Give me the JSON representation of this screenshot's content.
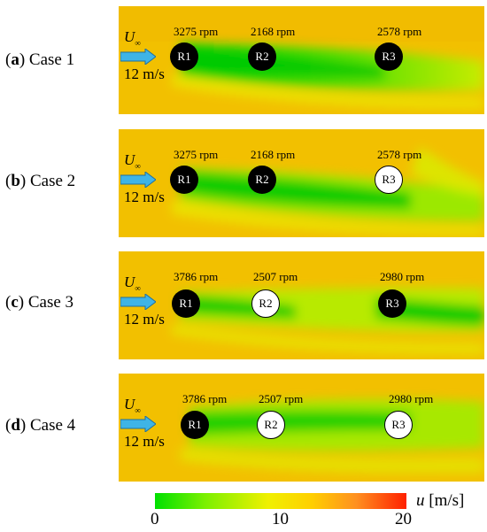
{
  "cases": [
    {
      "letter": "a",
      "name": "Case 1",
      "inflow_symbol": "U",
      "inflow_sub": "∞",
      "inflow_speed": "12 m/s",
      "rotors": [
        {
          "id": "R1",
          "rpm": "3275 rpm",
          "state": "active"
        },
        {
          "id": "R2",
          "rpm": "2168 rpm",
          "state": "active"
        },
        {
          "id": "R3",
          "rpm": "2578 rpm",
          "state": "active"
        }
      ]
    },
    {
      "letter": "b",
      "name": "Case 2",
      "inflow_symbol": "U",
      "inflow_sub": "∞",
      "inflow_speed": "12 m/s",
      "rotors": [
        {
          "id": "R1",
          "rpm": "3275 rpm",
          "state": "active"
        },
        {
          "id": "R2",
          "rpm": "2168 rpm",
          "state": "active"
        },
        {
          "id": "R3",
          "rpm": "2578 rpm",
          "state": "stopped"
        }
      ]
    },
    {
      "letter": "c",
      "name": "Case 3",
      "inflow_symbol": "U",
      "inflow_sub": "∞",
      "inflow_speed": "12 m/s",
      "rotors": [
        {
          "id": "R1",
          "rpm": "3786 rpm",
          "state": "active"
        },
        {
          "id": "R2",
          "rpm": "2507 rpm",
          "state": "stopped"
        },
        {
          "id": "R3",
          "rpm": "2980 rpm",
          "state": "active"
        }
      ]
    },
    {
      "letter": "d",
      "name": "Case 4",
      "inflow_symbol": "U",
      "inflow_sub": "∞",
      "inflow_speed": "12 m/s",
      "rotors": [
        {
          "id": "R1",
          "rpm": "3786 rpm",
          "state": "active"
        },
        {
          "id": "R2",
          "rpm": "2507 rpm",
          "state": "stopped"
        },
        {
          "id": "R3",
          "rpm": "2980 rpm",
          "state": "stopped"
        }
      ]
    }
  ],
  "colorbar": {
    "min_label": "0",
    "mid_label": "10",
    "max_label": "20",
    "var_symbol": "u",
    "unit": "[m/s]",
    "colors": {
      "low": "#00e000",
      "mid": "#f0f000",
      "high": "#ff2000"
    }
  }
}
